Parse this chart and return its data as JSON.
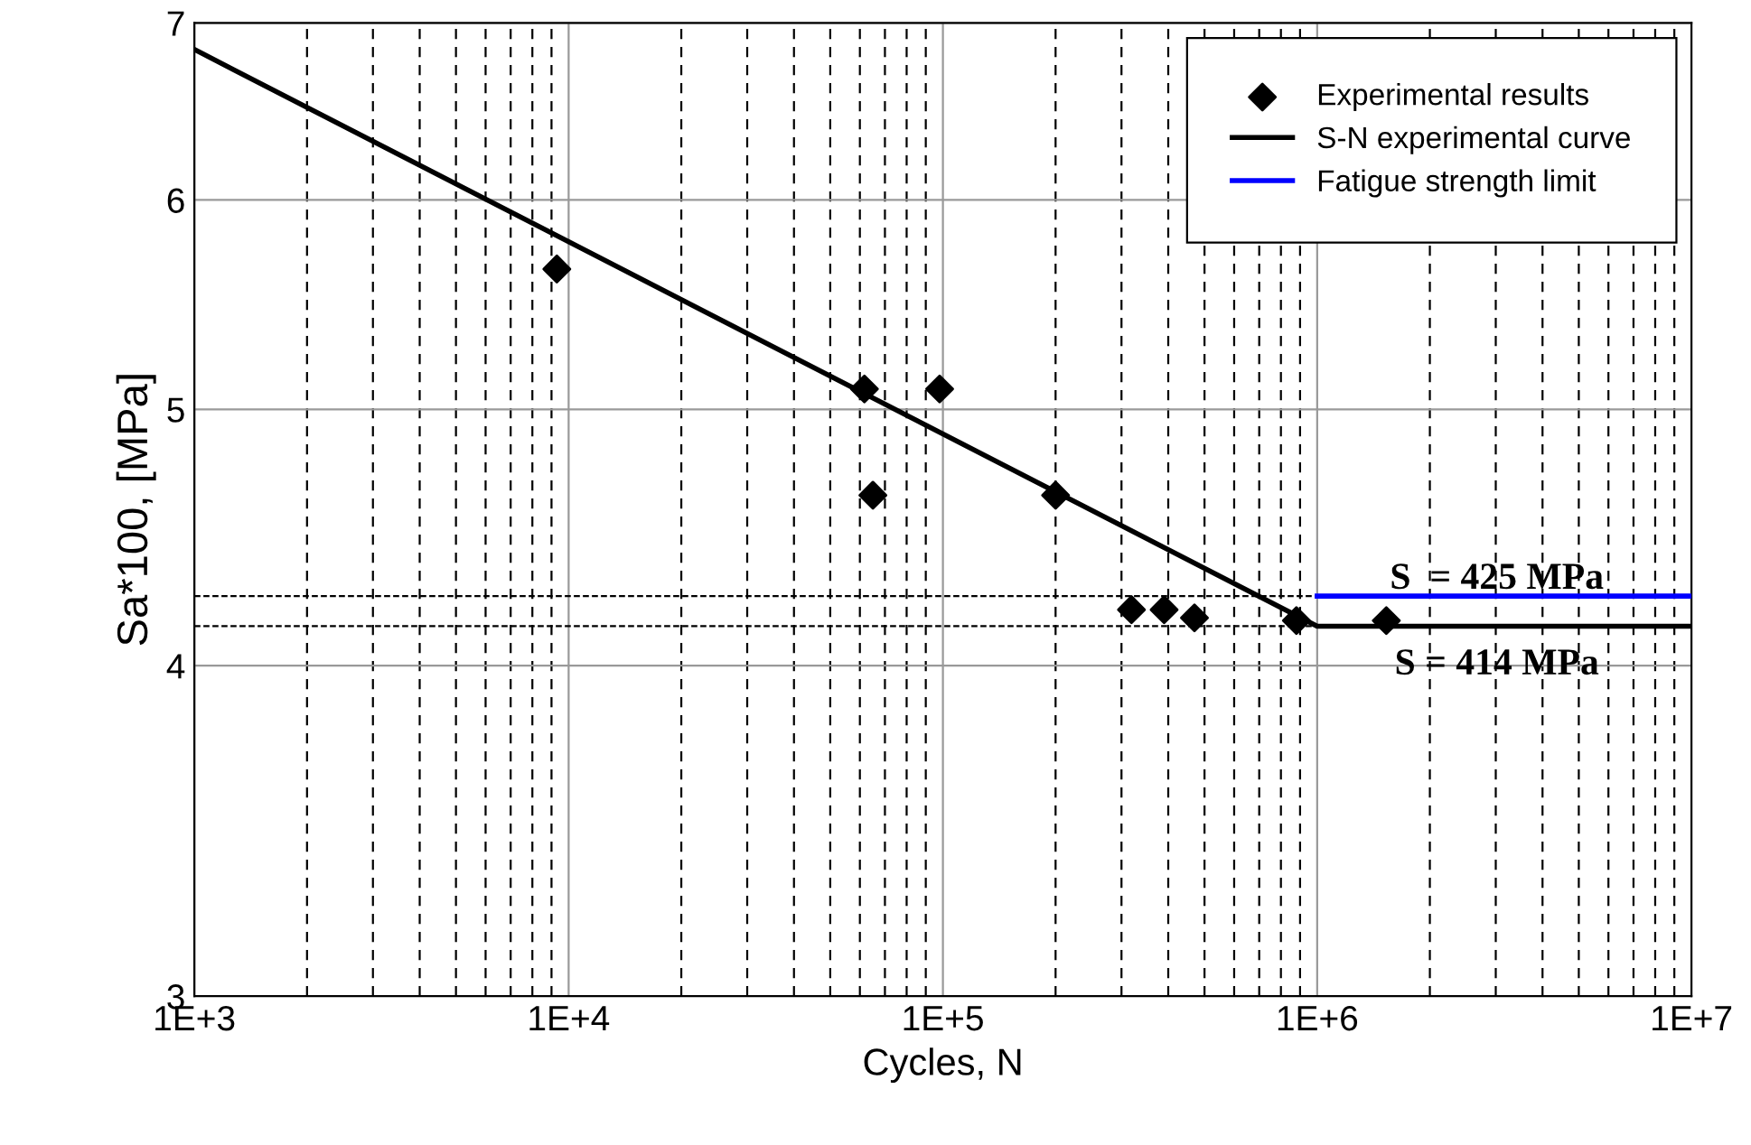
{
  "chart_data": {
    "type": "line",
    "xlabel": "Cycles, N",
    "ylabel": "Sa*100, [MPa]",
    "log": "xy",
    "grid": true,
    "legend": "top right",
    "xlim": [
      1000,
      10000000
    ],
    "ylim": [
      3,
      7
    ],
    "xticks": [
      {
        "value": 1000,
        "label": "1E+3"
      },
      {
        "value": 2000,
        "label": null
      },
      {
        "value": 3000,
        "label": null
      },
      {
        "value": 4000,
        "label": null
      },
      {
        "value": 5000,
        "label": null
      },
      {
        "value": 6000,
        "label": null
      },
      {
        "value": 7000,
        "label": null
      },
      {
        "value": 8000,
        "label": null
      },
      {
        "value": 9000,
        "label": null
      },
      {
        "value": 10000,
        "label": "1E+4"
      },
      {
        "value": 20000,
        "label": null
      },
      {
        "value": 30000,
        "label": null
      },
      {
        "value": 40000,
        "label": null
      },
      {
        "value": 50000,
        "label": null
      },
      {
        "value": 60000,
        "label": null
      },
      {
        "value": 70000,
        "label": null
      },
      {
        "value": 80000,
        "label": null
      },
      {
        "value": 90000,
        "label": null
      },
      {
        "value": 100000,
        "label": "1E+5"
      },
      {
        "value": 200000,
        "label": null
      },
      {
        "value": 300000,
        "label": null
      },
      {
        "value": 400000,
        "label": null
      },
      {
        "value": 500000,
        "label": null
      },
      {
        "value": 600000,
        "label": null
      },
      {
        "value": 700000,
        "label": null
      },
      {
        "value": 800000,
        "label": null
      },
      {
        "value": 900000,
        "label": null
      },
      {
        "value": 1000000,
        "label": "1E+6"
      },
      {
        "value": 2000000,
        "label": null
      },
      {
        "value": 3000000,
        "label": null
      },
      {
        "value": 4000000,
        "label": null
      },
      {
        "value": 5000000,
        "label": null
      },
      {
        "value": 6000000,
        "label": null
      },
      {
        "value": 7000000,
        "label": null
      },
      {
        "value": 8000000,
        "label": null
      },
      {
        "value": 9000000,
        "label": null
      },
      {
        "value": 10000000,
        "label": "1E+7"
      }
    ],
    "yticks": [
      3,
      4,
      5,
      6,
      7
    ],
    "series": [
      {
        "name": "Experimental results",
        "type": "scatter",
        "marker": "diamond",
        "color": "#000000",
        "x": [
          9300,
          61700,
          98000,
          65000,
          200000,
          319000,
          390000,
          470000,
          880000,
          1530000
        ],
        "values": [
          5.65,
          5.09,
          5.09,
          4.64,
          4.64,
          4.2,
          4.2,
          4.17,
          4.16,
          4.16
        ]
      },
      {
        "name": "S-N experimental curve",
        "color": "#000000",
        "x": [
          1000,
          1000000,
          10000000
        ],
        "values": [
          6.84,
          4.14,
          4.14
        ]
      },
      {
        "name": "Fatigue strength limit",
        "type": "line",
        "color": "#0000ff",
        "x": [
          1000000,
          10000000
        ],
        "values": [
          4.25,
          4.25
        ]
      },
      {
        "type": "line",
        "line_style": "dashed",
        "color": "#000000",
        "x": [
          1000,
          1000000
        ],
        "values": [
          4.25,
          4.25
        ]
      },
      {
        "type": "line",
        "line_style": "dashed",
        "color": "#000000",
        "x": [
          1000,
          1000000
        ],
        "values": [
          4.14,
          4.14
        ]
      }
    ],
    "annotations": [
      "S  = 425 MPa",
      "S = 414 MPa"
    ]
  }
}
